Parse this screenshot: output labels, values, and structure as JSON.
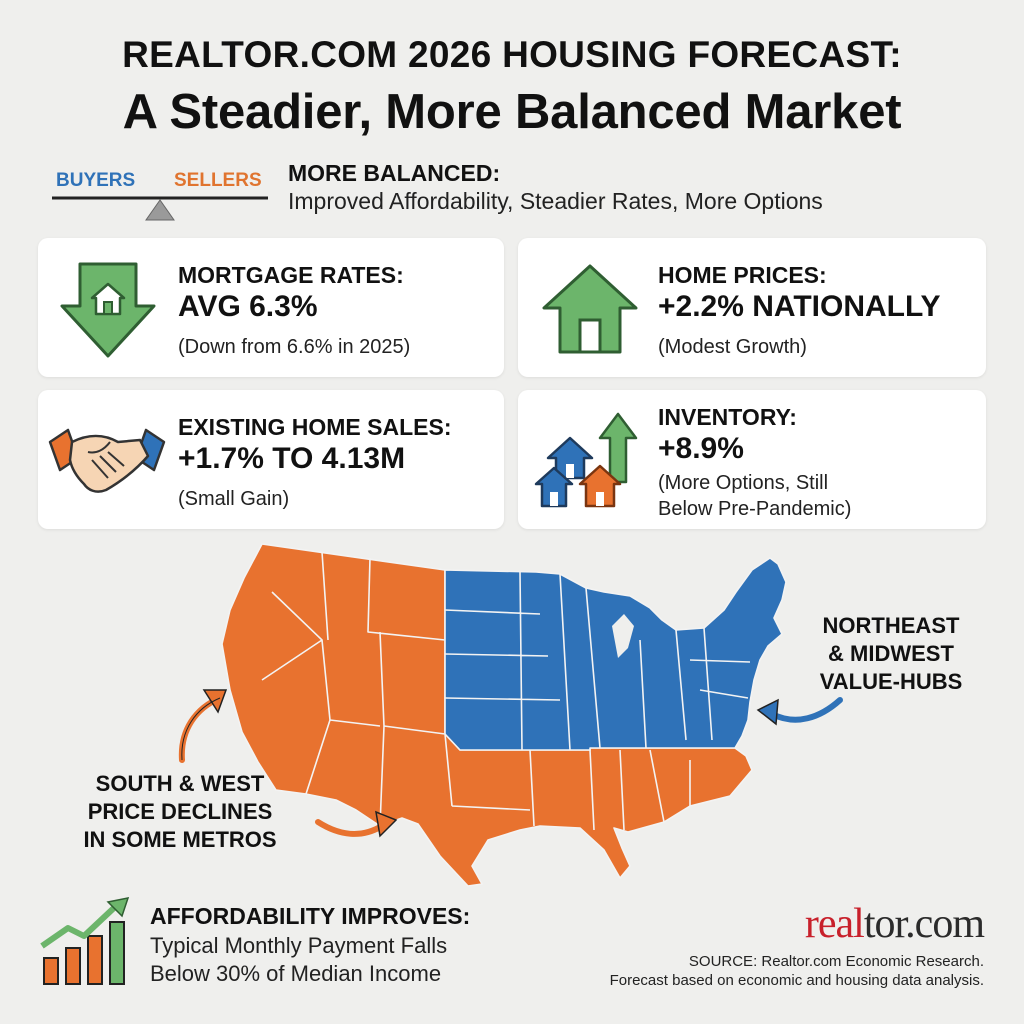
{
  "header": {
    "line1": "REALTOR.COM 2026 HOUSING FORECAST:",
    "line2": "A Steadier, More Balanced Market"
  },
  "balance": {
    "buyers_label": "BUYERS",
    "sellers_label": "SELLERS",
    "heading": "MORE BALANCED:",
    "subtext": "Improved Affordability, Steadier Rates, More Options"
  },
  "cards": [
    {
      "heading": "MORTGAGE RATES:",
      "value": "AVG 6.3%",
      "sub": [
        "(Down from 6.6% in 2025)"
      ],
      "icon": "down-arrow-house-icon"
    },
    {
      "heading": "HOME PRICES:",
      "value": "+2.2% NATIONALLY",
      "sub": [
        "(Modest Growth)"
      ],
      "icon": "house-icon"
    },
    {
      "heading": "EXISTING HOME SALES:",
      "value": "+1.7% TO 4.13M",
      "sub": [
        "(Small Gain)"
      ],
      "icon": "handshake-icon"
    },
    {
      "heading": "INVENTORY:",
      "value": "+8.9%",
      "sub": [
        "(More Options, Still",
        "Below Pre-Pandemic)"
      ],
      "icon": "houses-up-arrow-icon"
    }
  ],
  "map": {
    "northeast_callout": [
      "NORTHEAST",
      "& MIDWEST",
      "VALUE-HUBS"
    ],
    "south_callout": [
      "SOUTH & WEST",
      "PRICE DECLINES",
      "IN SOME METROS"
    ],
    "colors": {
      "south_west": "#e8722f",
      "northeast_midwest": "#2f72b8"
    }
  },
  "affordability": {
    "heading": "AFFORDABILITY IMPROVES:",
    "sub": [
      "Typical Monthly Payment Falls",
      "Below 30% of Median Income"
    ]
  },
  "brand": {
    "logo_r": "real",
    "logo_rest": "tor.com",
    "source_lines": [
      "SOURCE: Realtor.com Economic Research.",
      "Forecast based on economic and housing data analysis."
    ]
  },
  "colors": {
    "green": "#6cb56b",
    "orange": "#e8722f",
    "blue": "#2f72b8",
    "background": "#efefed"
  }
}
